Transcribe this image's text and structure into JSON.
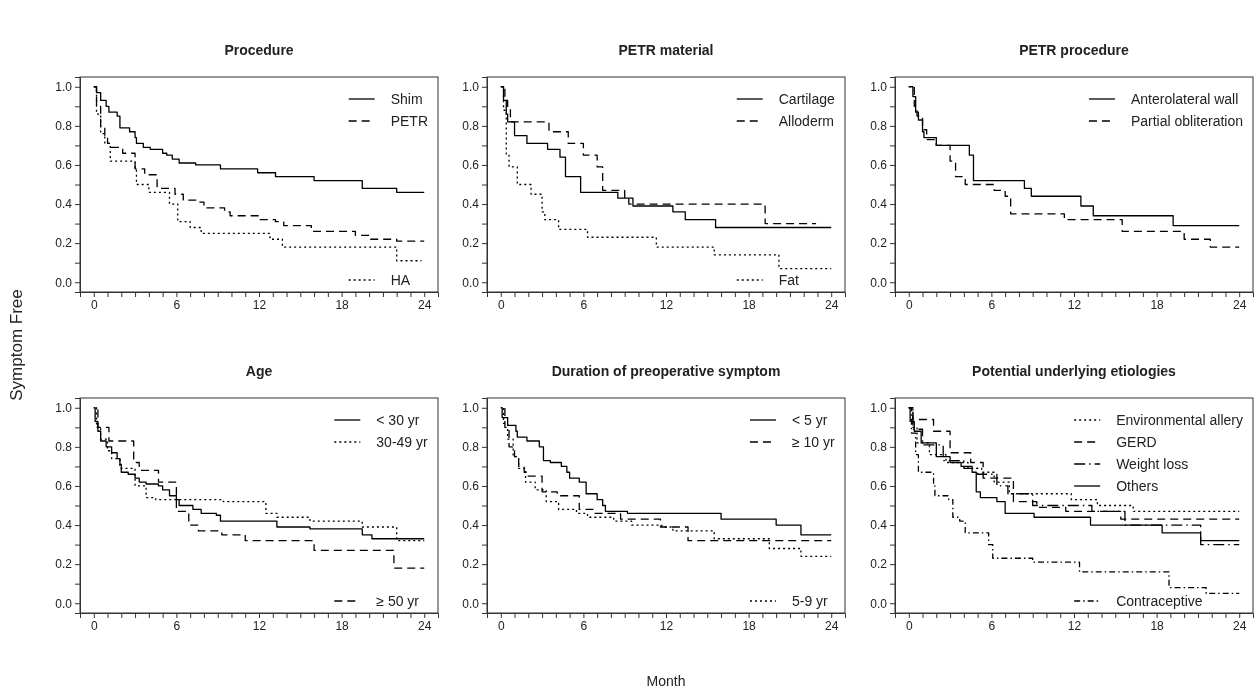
{
  "chart_data": [
    {
      "type": "step",
      "title": "Procedure",
      "ylabel": "Symptom Free",
      "legend": "right",
      "xlim": [
        -1,
        25
      ],
      "ylim": [
        -0.05,
        1.05
      ],
      "xticks": [
        0,
        {
          "value": 1,
          "label": null
        },
        {
          "value": 2,
          "label": null
        },
        {
          "value": 3,
          "label": null
        },
        {
          "value": 4,
          "label": null
        },
        {
          "value": 5,
          "label": null
        },
        6,
        {
          "value": 7,
          "label": null
        },
        {
          "value": 8,
          "label": null
        },
        {
          "value": 9,
          "label": null
        },
        {
          "value": 10,
          "label": null
        },
        {
          "value": 11,
          "label": null
        },
        12,
        {
          "value": 13,
          "label": null
        },
        {
          "value": 14,
          "label": null
        },
        {
          "value": 15,
          "label": null
        },
        {
          "value": 16,
          "label": null
        },
        {
          "value": 17,
          "label": null
        },
        18,
        {
          "value": 19,
          "label": null
        },
        {
          "value": 20,
          "label": null
        },
        {
          "value": 21,
          "label": null
        },
        {
          "value": 22,
          "label": null
        },
        {
          "value": 23,
          "label": null
        },
        24
      ],
      "yticks": [
        {
          "value": 0,
          "label": "0.0"
        },
        {
          "value": 0.1,
          "label": null
        },
        {
          "value": 0.2,
          "label": "0.2"
        },
        {
          "value": 0.3,
          "label": null
        },
        {
          "value": 0.4,
          "label": "0.4"
        },
        {
          "value": 0.5,
          "label": null
        },
        {
          "value": 0.6,
          "label": "0.6"
        },
        {
          "value": 0.7,
          "label": null
        },
        {
          "value": 0.8,
          "label": "0.8"
        },
        {
          "value": 0.9,
          "label": null
        },
        {
          "value": 1,
          "label": "1.0"
        }
      ],
      "series": [
        {
          "name": "Shim",
          "color": "#000000",
          "line_style": "solid",
          "x": [
            0,
            0.2,
            0.5,
            0.9,
            1.1,
            1.7,
            1.9,
            2.6,
            3.0,
            3.1,
            3.6,
            4.1,
            5.0,
            5.3,
            5.7,
            6.2,
            7.4,
            9.2,
            11.9,
            13.2,
            16.0,
            19.5,
            22.0,
            24
          ],
          "values": [
            1,
            0.97,
            0.93,
            0.9,
            0.87,
            0.85,
            0.79,
            0.77,
            0.74,
            0.71,
            0.69,
            0.68,
            0.66,
            0.65,
            0.63,
            0.61,
            0.6,
            0.58,
            0.56,
            0.54,
            0.52,
            0.48,
            0.46,
            0.46
          ]
        },
        {
          "name": "PETR",
          "color": "#000000",
          "line_style": "dashed",
          "x": [
            0,
            0.2,
            0.5,
            0.8,
            1.0,
            1.2,
            2.1,
            3.0,
            3.7,
            4.6,
            5.9,
            6.5,
            7.5,
            8.0,
            9.5,
            9.9,
            12.0,
            13.2,
            13.8,
            15.8,
            19.0,
            20.0,
            22.0,
            24
          ],
          "values": [
            1,
            0.9,
            0.8,
            0.74,
            0.71,
            0.69,
            0.66,
            0.58,
            0.55,
            0.48,
            0.45,
            0.42,
            0.41,
            0.38,
            0.36,
            0.34,
            0.32,
            0.31,
            0.29,
            0.26,
            0.24,
            0.22,
            0.21,
            0.21
          ]
        },
        {
          "name": "HA",
          "color": "#000000",
          "line_style": "dotted",
          "x": [
            0,
            0.2,
            0.5,
            0.8,
            1.2,
            3.0,
            3.1,
            4.0,
            5.5,
            6.1,
            7.0,
            7.8,
            12.8,
            13.7,
            22.0,
            23.8
          ],
          "values": [
            1,
            0.86,
            0.76,
            0.71,
            0.62,
            0.58,
            0.5,
            0.46,
            0.4,
            0.31,
            0.28,
            0.25,
            0.22,
            0.18,
            0.11,
            0.11
          ]
        }
      ]
    },
    {
      "type": "step",
      "title": "PETR material",
      "legend": "right",
      "xlim": [
        -1,
        25
      ],
      "ylim": [
        -0.05,
        1.05
      ],
      "xticks": [
        0,
        {
          "value": 1,
          "label": null
        },
        {
          "value": 2,
          "label": null
        },
        {
          "value": 3,
          "label": null
        },
        {
          "value": 4,
          "label": null
        },
        {
          "value": 5,
          "label": null
        },
        6,
        {
          "value": 7,
          "label": null
        },
        {
          "value": 8,
          "label": null
        },
        {
          "value": 9,
          "label": null
        },
        {
          "value": 10,
          "label": null
        },
        {
          "value": 11,
          "label": null
        },
        12,
        {
          "value": 13,
          "label": null
        },
        {
          "value": 14,
          "label": null
        },
        {
          "value": 15,
          "label": null
        },
        {
          "value": 16,
          "label": null
        },
        {
          "value": 17,
          "label": null
        },
        18,
        {
          "value": 19,
          "label": null
        },
        {
          "value": 20,
          "label": null
        },
        {
          "value": 21,
          "label": null
        },
        {
          "value": 22,
          "label": null
        },
        {
          "value": 23,
          "label": null
        },
        24
      ],
      "yticks": [
        {
          "value": 0,
          "label": "0.0"
        },
        {
          "value": 0.1,
          "label": null
        },
        {
          "value": 0.2,
          "label": "0.2"
        },
        {
          "value": 0.3,
          "label": null
        },
        {
          "value": 0.4,
          "label": "0.4"
        },
        {
          "value": 0.5,
          "label": null
        },
        {
          "value": 0.6,
          "label": "0.6"
        },
        {
          "value": 0.7,
          "label": null
        },
        {
          "value": 0.8,
          "label": "0.8"
        },
        {
          "value": 0.9,
          "label": null
        },
        {
          "value": 1,
          "label": "1.0"
        }
      ],
      "series": [
        {
          "name": "Cartilage",
          "color": "#000000",
          "line_style": "solid",
          "x": [
            0,
            0.2,
            0.4,
            0.5,
            1.0,
            1.9,
            3.4,
            4.3,
            4.7,
            5.8,
            8.5,
            9.6,
            12.5,
            13.4,
            15.6,
            24
          ],
          "values": [
            1,
            0.93,
            0.86,
            0.82,
            0.75,
            0.71,
            0.68,
            0.64,
            0.54,
            0.46,
            0.43,
            0.39,
            0.36,
            0.32,
            0.28,
            0.28
          ]
        },
        {
          "name": "Alloderm",
          "color": "#000000",
          "line_style": "dashed",
          "x": [
            0,
            0.3,
            0.5,
            0.7,
            3.5,
            4.9,
            6.0,
            7.0,
            7.4,
            9.0,
            9.3,
            19.2,
            22.9
          ],
          "values": [
            1,
            0.93,
            0.89,
            0.82,
            0.77,
            0.71,
            0.65,
            0.59,
            0.47,
            0.43,
            0.4,
            0.3,
            0.3
          ]
        },
        {
          "name": "Fat",
          "color": "#000000",
          "line_style": "dotted",
          "x": [
            0,
            0.2,
            0.4,
            0.6,
            1.2,
            2.2,
            3.0,
            3.2,
            4.2,
            6.3,
            11.3,
            15.5,
            20.2,
            24
          ],
          "values": [
            1,
            0.88,
            0.65,
            0.59,
            0.5,
            0.45,
            0.36,
            0.32,
            0.27,
            0.23,
            0.18,
            0.14,
            0.07,
            0.07
          ]
        }
      ]
    },
    {
      "type": "step",
      "title": "PETR procedure",
      "legend": "right",
      "xlim": [
        -1,
        25
      ],
      "ylim": [
        -0.05,
        1.05
      ],
      "xticks": [
        0,
        {
          "value": 1,
          "label": null
        },
        {
          "value": 2,
          "label": null
        },
        {
          "value": 3,
          "label": null
        },
        {
          "value": 4,
          "label": null
        },
        {
          "value": 5,
          "label": null
        },
        6,
        {
          "value": 7,
          "label": null
        },
        {
          "value": 8,
          "label": null
        },
        {
          "value": 9,
          "label": null
        },
        {
          "value": 10,
          "label": null
        },
        {
          "value": 11,
          "label": null
        },
        12,
        {
          "value": 13,
          "label": null
        },
        {
          "value": 14,
          "label": null
        },
        {
          "value": 15,
          "label": null
        },
        {
          "value": 16,
          "label": null
        },
        {
          "value": 17,
          "label": null
        },
        18,
        {
          "value": 19,
          "label": null
        },
        {
          "value": 20,
          "label": null
        },
        {
          "value": 21,
          "label": null
        },
        {
          "value": 22,
          "label": null
        },
        {
          "value": 23,
          "label": null
        },
        24
      ],
      "yticks": [
        {
          "value": 0,
          "label": "0.0"
        },
        {
          "value": 0.1,
          "label": null
        },
        {
          "value": 0.2,
          "label": "0.2"
        },
        {
          "value": 0.3,
          "label": null
        },
        {
          "value": 0.4,
          "label": "0.4"
        },
        {
          "value": 0.5,
          "label": null
        },
        {
          "value": 0.6,
          "label": "0.6"
        },
        {
          "value": 0.7,
          "label": null
        },
        {
          "value": 0.8,
          "label": "0.8"
        },
        {
          "value": 0.9,
          "label": null
        },
        {
          "value": 1,
          "label": "1.0"
        }
      ],
      "series": [
        {
          "name": "Anterolateral wall",
          "color": "#000000",
          "line_style": "solid",
          "x": [
            0,
            0.3,
            0.5,
            0.7,
            1.0,
            1.1,
            2.0,
            4.4,
            4.7,
            8.4,
            8.9,
            12.5,
            13.4,
            19.2,
            24
          ],
          "values": [
            1,
            0.95,
            0.87,
            0.83,
            0.77,
            0.74,
            0.7,
            0.65,
            0.52,
            0.48,
            0.44,
            0.39,
            0.34,
            0.29,
            0.29
          ]
        },
        {
          "name": "Partial obliteration",
          "color": "#000000",
          "line_style": "dashed",
          "x": [
            0,
            0.4,
            0.6,
            1.0,
            1.3,
            2.0,
            3.0,
            3.4,
            4.1,
            6.2,
            7.0,
            7.4,
            11.3,
            15.5,
            20.0,
            21.9,
            24
          ],
          "values": [
            1,
            0.9,
            0.85,
            0.78,
            0.73,
            0.7,
            0.62,
            0.54,
            0.5,
            0.47,
            0.44,
            0.35,
            0.32,
            0.26,
            0.22,
            0.18,
            0.18
          ]
        }
      ]
    },
    {
      "type": "step",
      "title": "Age",
      "legend": "right",
      "xlim": [
        -1,
        25
      ],
      "ylim": [
        -0.05,
        1.05
      ],
      "xticks": [
        0,
        {
          "value": 1,
          "label": null
        },
        {
          "value": 2,
          "label": null
        },
        {
          "value": 3,
          "label": null
        },
        {
          "value": 4,
          "label": null
        },
        {
          "value": 5,
          "label": null
        },
        6,
        {
          "value": 7,
          "label": null
        },
        {
          "value": 8,
          "label": null
        },
        {
          "value": 9,
          "label": null
        },
        {
          "value": 10,
          "label": null
        },
        {
          "value": 11,
          "label": null
        },
        12,
        {
          "value": 13,
          "label": null
        },
        {
          "value": 14,
          "label": null
        },
        {
          "value": 15,
          "label": null
        },
        {
          "value": 16,
          "label": null
        },
        {
          "value": 17,
          "label": null
        },
        18,
        {
          "value": 19,
          "label": null
        },
        {
          "value": 20,
          "label": null
        },
        {
          "value": 21,
          "label": null
        },
        {
          "value": 22,
          "label": null
        },
        {
          "value": 23,
          "label": null
        },
        24
      ],
      "yticks": [
        {
          "value": 0,
          "label": "0.0"
        },
        {
          "value": 0.1,
          "label": null
        },
        {
          "value": 0.2,
          "label": "0.2"
        },
        {
          "value": 0.3,
          "label": null
        },
        {
          "value": 0.4,
          "label": "0.4"
        },
        {
          "value": 0.5,
          "label": null
        },
        {
          "value": 0.6,
          "label": "0.6"
        },
        {
          "value": 0.7,
          "label": null
        },
        {
          "value": 0.8,
          "label": "0.8"
        },
        {
          "value": 0.9,
          "label": null
        },
        {
          "value": 1,
          "label": "1.0"
        }
      ],
      "series": [
        {
          "name": "< 30 yr",
          "color": "#000000",
          "line_style": "solid",
          "x": [
            0,
            0.1,
            0.3,
            0.5,
            0.9,
            1.3,
            1.7,
            1.9,
            2.0,
            2.5,
            3.0,
            3.3,
            3.8,
            4.7,
            5.0,
            5.5,
            6.0,
            6.2,
            7.2,
            7.8,
            8.9,
            9.2,
            13.3,
            15.7,
            19.5,
            20.2,
            24
          ],
          "values": [
            1,
            0.93,
            0.88,
            0.83,
            0.8,
            0.77,
            0.74,
            0.71,
            0.67,
            0.66,
            0.64,
            0.62,
            0.61,
            0.6,
            0.58,
            0.55,
            0.53,
            0.5,
            0.48,
            0.46,
            0.45,
            0.42,
            0.39,
            0.38,
            0.35,
            0.33,
            0.33
          ]
        },
        {
          "name": "30-49 yr",
          "color": "#000000",
          "line_style": "dotted",
          "x": [
            0,
            0.2,
            0.5,
            1.0,
            1.3,
            1.9,
            3.0,
            3.8,
            4.5,
            9.4,
            12.5,
            13.3,
            15.7,
            19.5,
            22.0,
            24
          ],
          "values": [
            1,
            0.9,
            0.84,
            0.78,
            0.74,
            0.69,
            0.6,
            0.54,
            0.53,
            0.52,
            0.46,
            0.44,
            0.42,
            0.39,
            0.32,
            0.32
          ]
        },
        {
          "name": "≥ 50 yr",
          "color": "#000000",
          "line_style": "dashed",
          "x": [
            0,
            0.3,
            1.1,
            2.9,
            3.3,
            4.7,
            6.0,
            6.9,
            7.6,
            9.3,
            11.0,
            16.0,
            21.8,
            24
          ],
          "values": [
            1,
            0.9,
            0.83,
            0.72,
            0.68,
            0.62,
            0.47,
            0.4,
            0.37,
            0.35,
            0.32,
            0.27,
            0.18,
            0.18
          ]
        }
      ]
    },
    {
      "type": "step",
      "title": "Duration of preoperative symptom",
      "xlabel": "Month",
      "legend": "right",
      "xlim": [
        -1,
        25
      ],
      "ylim": [
        -0.05,
        1.05
      ],
      "xticks": [
        0,
        {
          "value": 1,
          "label": null
        },
        {
          "value": 2,
          "label": null
        },
        {
          "value": 3,
          "label": null
        },
        {
          "value": 4,
          "label": null
        },
        {
          "value": 5,
          "label": null
        },
        6,
        {
          "value": 7,
          "label": null
        },
        {
          "value": 8,
          "label": null
        },
        {
          "value": 9,
          "label": null
        },
        {
          "value": 10,
          "label": null
        },
        {
          "value": 11,
          "label": null
        },
        12,
        {
          "value": 13,
          "label": null
        },
        {
          "value": 14,
          "label": null
        },
        {
          "value": 15,
          "label": null
        },
        {
          "value": 16,
          "label": null
        },
        {
          "value": 17,
          "label": null
        },
        18,
        {
          "value": 19,
          "label": null
        },
        {
          "value": 20,
          "label": null
        },
        {
          "value": 21,
          "label": null
        },
        {
          "value": 22,
          "label": null
        },
        {
          "value": 23,
          "label": null
        },
        24
      ],
      "yticks": [
        {
          "value": 0,
          "label": "0.0"
        },
        {
          "value": 0.1,
          "label": null
        },
        {
          "value": 0.2,
          "label": "0.2"
        },
        {
          "value": 0.3,
          "label": null
        },
        {
          "value": 0.4,
          "label": "0.4"
        },
        {
          "value": 0.5,
          "label": null
        },
        {
          "value": 0.6,
          "label": "0.6"
        },
        {
          "value": 0.7,
          "label": null
        },
        {
          "value": 0.8,
          "label": "0.8"
        },
        {
          "value": 0.9,
          "label": null
        },
        {
          "value": 1,
          "label": "1.0"
        }
      ],
      "series": [
        {
          "name": "< 5 yr",
          "color": "#000000",
          "line_style": "solid",
          "x": [
            0,
            0.1,
            0.5,
            1.1,
            1.2,
            1.9,
            2.8,
            3.1,
            3.6,
            4.4,
            4.8,
            5.0,
            5.7,
            6.2,
            7.0,
            7.4,
            7.6,
            9.2,
            16.0,
            20.0,
            21.8,
            24
          ],
          "values": [
            1,
            0.95,
            0.91,
            0.88,
            0.85,
            0.83,
            0.8,
            0.73,
            0.72,
            0.7,
            0.67,
            0.64,
            0.62,
            0.56,
            0.53,
            0.5,
            0.47,
            0.46,
            0.43,
            0.4,
            0.35,
            0.35
          ]
        },
        {
          "name": "≥ 10 yr",
          "color": "#000000",
          "line_style": "dashed",
          "x": [
            0,
            0.3,
            0.6,
            1.0,
            1.3,
            1.7,
            2.0,
            3.0,
            4.1,
            5.7,
            6.8,
            8.7,
            11.6,
            13.6,
            24
          ],
          "values": [
            1,
            0.9,
            0.8,
            0.75,
            0.7,
            0.67,
            0.65,
            0.57,
            0.55,
            0.48,
            0.46,
            0.43,
            0.39,
            0.32,
            0.32
          ]
        },
        {
          "name": "5-9 yr",
          "color": "#000000",
          "line_style": "dotted",
          "x": [
            0,
            0.2,
            0.5,
            0.9,
            1.3,
            1.8,
            2.5,
            3.3,
            4.2,
            5.5,
            6.3,
            8.2,
            9.5,
            11.7,
            12.5,
            15.5,
            19.5,
            21.8,
            24
          ],
          "values": [
            1,
            0.92,
            0.84,
            0.75,
            0.69,
            0.62,
            0.58,
            0.52,
            0.48,
            0.46,
            0.44,
            0.42,
            0.4,
            0.39,
            0.37,
            0.33,
            0.28,
            0.24,
            0.24
          ]
        }
      ]
    },
    {
      "type": "step",
      "title": "Potential underlying etiologies",
      "legend": "right",
      "xlim": [
        -1,
        25
      ],
      "ylim": [
        -0.05,
        1.05
      ],
      "xticks": [
        0,
        {
          "value": 1,
          "label": null
        },
        {
          "value": 2,
          "label": null
        },
        {
          "value": 3,
          "label": null
        },
        {
          "value": 4,
          "label": null
        },
        {
          "value": 5,
          "label": null
        },
        6,
        {
          "value": 7,
          "label": null
        },
        {
          "value": 8,
          "label": null
        },
        {
          "value": 9,
          "label": null
        },
        {
          "value": 10,
          "label": null
        },
        {
          "value": 11,
          "label": null
        },
        12,
        {
          "value": 13,
          "label": null
        },
        {
          "value": 14,
          "label": null
        },
        {
          "value": 15,
          "label": null
        },
        {
          "value": 16,
          "label": null
        },
        {
          "value": 17,
          "label": null
        },
        18,
        {
          "value": 19,
          "label": null
        },
        {
          "value": 20,
          "label": null
        },
        {
          "value": 21,
          "label": null
        },
        {
          "value": 22,
          "label": null
        },
        {
          "value": 23,
          "label": null
        },
        24
      ],
      "yticks": [
        {
          "value": 0,
          "label": "0.0"
        },
        {
          "value": 0.1,
          "label": null
        },
        {
          "value": 0.2,
          "label": "0.2"
        },
        {
          "value": 0.3,
          "label": null
        },
        {
          "value": 0.4,
          "label": "0.4"
        },
        {
          "value": 0.5,
          "label": null
        },
        {
          "value": 0.6,
          "label": "0.6"
        },
        {
          "value": 0.7,
          "label": null
        },
        {
          "value": 0.8,
          "label": "0.8"
        },
        {
          "value": 0.9,
          "label": null
        },
        {
          "value": 1,
          "label": "1.0"
        }
      ],
      "series": [
        {
          "name": "Environmental allery",
          "color": "#000000",
          "line_style": "dotted",
          "x": [
            0,
            0.3,
            0.6,
            1.5,
            2.7,
            4.3,
            5.3,
            6.2,
            7.3,
            11.8,
            13.7,
            16.3,
            24
          ],
          "values": [
            1,
            0.9,
            0.82,
            0.76,
            0.72,
            0.69,
            0.67,
            0.62,
            0.56,
            0.53,
            0.5,
            0.47,
            0.47
          ]
        },
        {
          "name": "GERD",
          "color": "#000000",
          "line_style": "dashed",
          "x": [
            0,
            0.3,
            1.8,
            3.0,
            4.5,
            5.4,
            7.6,
            9.3,
            11.4,
            15.4,
            24
          ],
          "values": [
            1,
            0.94,
            0.88,
            0.77,
            0.72,
            0.64,
            0.52,
            0.49,
            0.47,
            0.43,
            0.43
          ]
        },
        {
          "name": "Weight loss",
          "color": "#000000",
          "line_style": "longdashdot",
          "x": [
            0,
            0.3,
            1.0,
            2.5,
            4.0,
            5.0,
            6.4,
            7.2,
            9.0,
            13.3,
            15.7,
            21.2,
            24
          ],
          "values": [
            1,
            0.89,
            0.81,
            0.73,
            0.69,
            0.66,
            0.6,
            0.56,
            0.5,
            0.47,
            0.4,
            0.3,
            0.3
          ]
        },
        {
          "name": "Others",
          "color": "#000000",
          "line_style": "solid",
          "x": [
            0,
            0.1,
            0.4,
            0.9,
            2.0,
            3.0,
            3.8,
            4.6,
            4.9,
            5.2,
            6.4,
            7.0,
            9.1,
            13.2,
            18.4,
            21.2,
            24
          ],
          "values": [
            1,
            0.93,
            0.88,
            0.82,
            0.75,
            0.72,
            0.7,
            0.67,
            0.57,
            0.54,
            0.52,
            0.46,
            0.44,
            0.4,
            0.36,
            0.32,
            0.32
          ]
        },
        {
          "name": "Contraceptive",
          "color": "#000000",
          "line_style": "dashdot",
          "x": [
            0,
            0.2,
            0.5,
            0.7,
            1.8,
            1.9,
            2.9,
            3.2,
            3.7,
            4.1,
            5.8,
            6.1,
            9.0,
            12.4,
            18.9,
            21.6,
            24
          ],
          "values": [
            1,
            0.87,
            0.76,
            0.67,
            0.6,
            0.55,
            0.53,
            0.44,
            0.42,
            0.36,
            0.3,
            0.23,
            0.21,
            0.16,
            0.08,
            0.05,
            0.05
          ]
        }
      ]
    }
  ]
}
